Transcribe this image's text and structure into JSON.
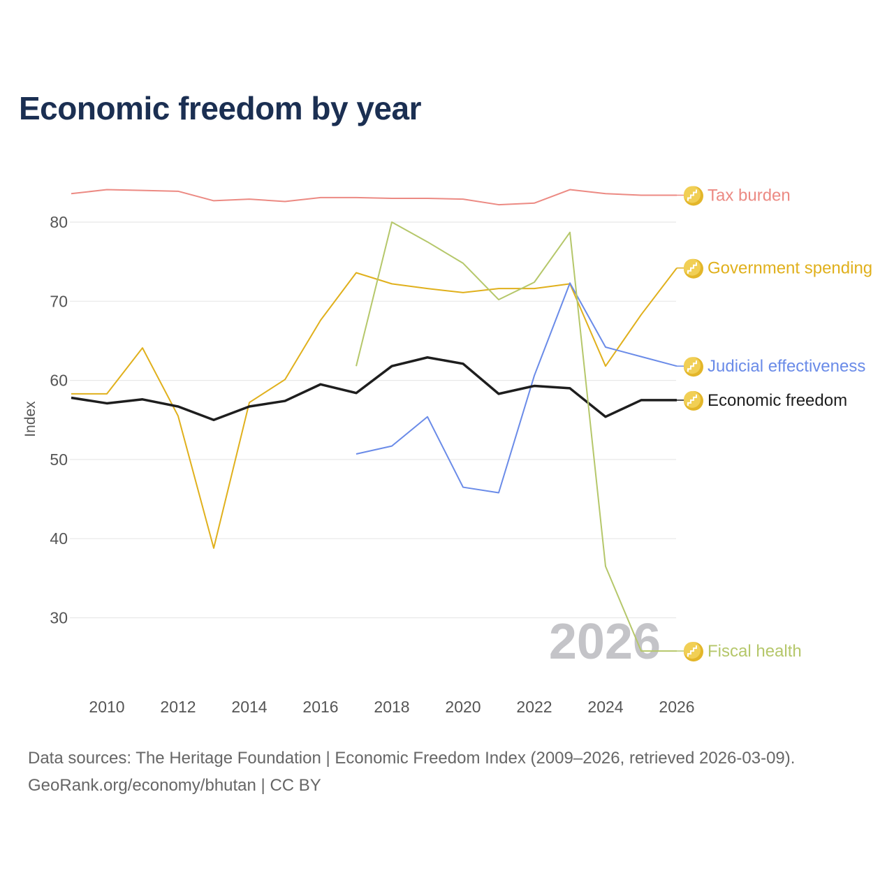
{
  "chart_data": {
    "type": "line",
    "title": "Economic freedom by year",
    "ylabel": "Index",
    "xlabel": "",
    "xlim": [
      2009,
      2026
    ],
    "ylim": [
      21,
      88
    ],
    "yticks": [
      30,
      40,
      50,
      60,
      70,
      80
    ],
    "xticks": [
      2010,
      2012,
      2014,
      2016,
      2018,
      2020,
      2022,
      2024,
      2026
    ],
    "grid": true,
    "watermark_year": "2026",
    "legend_placement": "right-end-labels",
    "series": [
      {
        "name": "Tax burden",
        "color": "#ec8a83",
        "width": 2,
        "start": 2009,
        "values": [
          83.6,
          84.1,
          84.0,
          83.9,
          82.7,
          82.9,
          82.6,
          83.1,
          83.1,
          83.0,
          83.0,
          82.9,
          82.2,
          82.4,
          84.1,
          83.6,
          83.4,
          83.4
        ]
      },
      {
        "name": "Government spending",
        "color": "#e0b01c",
        "width": 2,
        "start": 2009,
        "values": [
          58.3,
          58.3,
          64.1,
          55.5,
          38.8,
          57.2,
          60.1,
          67.6,
          73.6,
          72.2,
          71.6,
          71.1,
          71.6,
          71.6,
          72.2,
          61.8,
          68.3,
          74.2
        ]
      },
      {
        "name": "Judicial effectiveness",
        "color": "#6a8be8",
        "width": 2,
        "start": 2017,
        "values": [
          50.7,
          51.7,
          55.4,
          46.5,
          45.8,
          60.6,
          72.3,
          64.2,
          63.0,
          61.8
        ]
      },
      {
        "name": "Economic freedom",
        "color": "#1e1e1e",
        "width": 3.5,
        "start": 2009,
        "values": [
          57.8,
          57.1,
          57.6,
          56.7,
          55.0,
          56.7,
          57.4,
          59.5,
          58.4,
          61.8,
          62.9,
          62.1,
          58.3,
          59.3,
          59.0,
          55.4,
          57.5,
          57.5
        ]
      },
      {
        "name": "Fiscal health",
        "color": "#b5c76a",
        "width": 2,
        "start": 2017,
        "values": [
          61.8,
          80.0,
          77.5,
          74.8,
          70.2,
          72.4,
          78.7,
          36.5,
          25.8,
          25.8
        ]
      }
    ],
    "label_positions_index": [
      83.4,
      74.2,
      61.8,
      57.5,
      25.8
    ]
  },
  "footer": {
    "line1": "Data sources: The Heritage Foundation | Economic Freedom Index (2009–2026, retrieved 2026-03-09).",
    "line2": "GeoRank.org/economy/bhutan | CC BY"
  },
  "icon": "stairs-coin-icon"
}
